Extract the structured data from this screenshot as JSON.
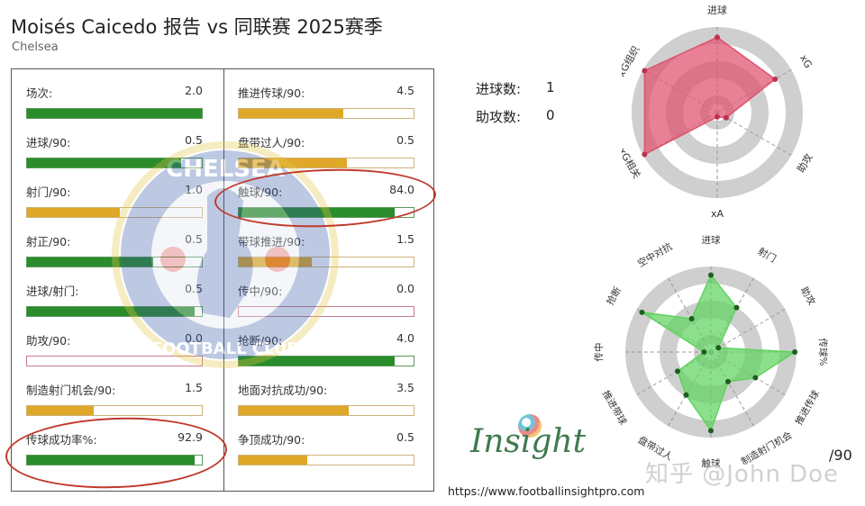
{
  "header": {
    "title": "Moisés Caicedo 报告 vs 同联赛 2025赛季",
    "team": "Chelsea"
  },
  "colors": {
    "green": "#2a8c2a",
    "orange": "#e0a828",
    "pink_border": "#c67b8b",
    "radar_red": "#e0506e",
    "radar_green": "#5fd35f",
    "ring_grey": "#cccccc",
    "annotation_red": "#c0392b"
  },
  "left_metrics": [
    {
      "label": "场次:",
      "value": "2.0",
      "fill": 1.0,
      "color": "green"
    },
    {
      "label": "进球/90:",
      "value": "0.5",
      "fill": 0.88,
      "color": "green"
    },
    {
      "label": "射门/90:",
      "value": "1.0",
      "fill": 0.53,
      "color": "orange"
    },
    {
      "label": "射正/90:",
      "value": "0.5",
      "fill": 0.72,
      "color": "green"
    },
    {
      "label": "进球/射门:",
      "value": "0.5",
      "fill": 0.96,
      "color": "green"
    },
    {
      "label": "助攻/90:",
      "value": "0.0",
      "fill": 0.0,
      "color": "pink"
    },
    {
      "label": "制造射门机会/90:",
      "value": "1.5",
      "fill": 0.38,
      "color": "orange"
    },
    {
      "label": "传球成功率%:",
      "value": "92.9",
      "fill": 0.96,
      "color": "green"
    }
  ],
  "right_metrics": [
    {
      "label": "推进传球/90:",
      "value": "4.5",
      "fill": 0.6,
      "color": "orange"
    },
    {
      "label": "盘带过人/90:",
      "value": "0.5",
      "fill": 0.62,
      "color": "orange"
    },
    {
      "label": "触球/90:",
      "value": "84.0",
      "fill": 0.89,
      "color": "green"
    },
    {
      "label": "带球推进/90:",
      "value": "1.5",
      "fill": 0.42,
      "color": "orange"
    },
    {
      "label": "传中/90:",
      "value": "0.0",
      "fill": 0.0,
      "color": "pink"
    },
    {
      "label": "抢断/90:",
      "value": "4.0",
      "fill": 0.89,
      "color": "green"
    },
    {
      "label": "地面对抗成功/90:",
      "value": "3.5",
      "fill": 0.63,
      "color": "orange"
    },
    {
      "label": "争顶成功/90:",
      "value": "0.5",
      "fill": 0.39,
      "color": "orange"
    }
  ],
  "counts": [
    {
      "label": "进球数:",
      "value": "1"
    },
    {
      "label": "助攻数:",
      "value": "0"
    }
  ],
  "chart_data": [
    {
      "type": "bar",
      "title": "Moisés Caicedo 报告 vs 同联赛 2025赛季 — Chelsea",
      "orientation": "horizontal",
      "note": "percentile-style bars; values shown are per-90 stats; fill = relative rank",
      "categories": [
        "场次",
        "进球/90",
        "射门/90",
        "射正/90",
        "进球/射门",
        "助攻/90",
        "制造射门机会/90",
        "传球成功率%",
        "推进传球/90",
        "盘带过人/90",
        "触球/90",
        "带球推进/90",
        "传中/90",
        "抢断/90",
        "地面对抗成功/90",
        "争顶成功/90"
      ],
      "values": [
        2.0,
        0.5,
        1.0,
        0.5,
        0.5,
        0.0,
        1.5,
        92.9,
        4.5,
        0.5,
        84.0,
        1.5,
        0.0,
        4.0,
        3.5,
        0.5
      ],
      "fill_ratio": [
        1.0,
        0.88,
        0.53,
        0.72,
        0.96,
        0.0,
        0.38,
        0.96,
        0.6,
        0.62,
        0.89,
        0.42,
        0.0,
        0.89,
        0.63,
        0.39
      ],
      "highlighted": [
        "传球成功率%",
        "触球/90"
      ]
    },
    {
      "type": "radar",
      "title": "",
      "axes": [
        "进球",
        "xG",
        "助攻",
        "xA",
        "xG相关",
        "xG组织"
      ],
      "values": [
        0.88,
        0.78,
        0.12,
        0.05,
        0.98,
        0.98
      ],
      "rings": 4,
      "color": "#e0506e"
    },
    {
      "type": "radar",
      "title": "",
      "unit_label": "/90",
      "axes": [
        "进球",
        "射门",
        "助攻",
        "传球%",
        "推进传球",
        "制造射门机会",
        "触球",
        "盘带过人",
        "推进带球",
        "传中",
        "抢断",
        "空中对抗"
      ],
      "values": [
        0.9,
        0.6,
        0.1,
        0.98,
        0.6,
        0.4,
        0.92,
        0.58,
        0.45,
        0.08,
        0.93,
        0.45
      ],
      "rings": 4,
      "color": "#5fd35f"
    }
  ],
  "footer": {
    "logo_text": "Insight",
    "url": "https://www.footballinsightpro.com",
    "per90_label": "/90",
    "watermark": "知乎 @John Doe"
  }
}
